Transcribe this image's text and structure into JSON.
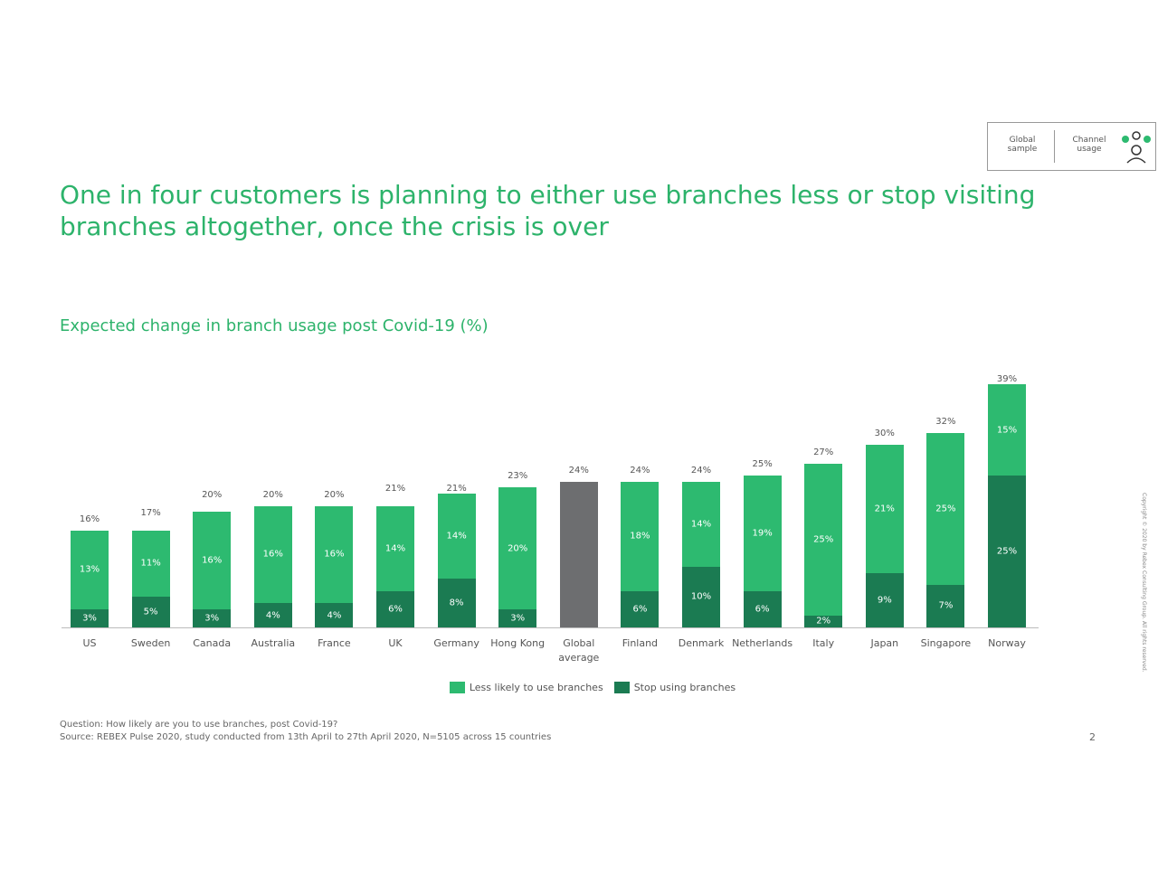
{
  "badge": {
    "left": "Global sample",
    "right": "Channel usage"
  },
  "chart_data": {
    "type": "stacked_bar",
    "title": "One in four customers is planning to either use branches less or stop visiting branches altogether, once the crisis is over",
    "subtitle": "Expected change in branch usage post Covid-19 (%)",
    "categories": [
      "US",
      "Sweden",
      "Canada",
      "Australia",
      "France",
      "UK",
      "Germany",
      "Hong Kong",
      "Global average",
      "Finland",
      "Denmark",
      "Netherlands",
      "Italy",
      "Japan",
      "Singapore",
      "Norway"
    ],
    "series": [
      {
        "name": "Less likely to use branches",
        "color": "#2dba70",
        "values": [
          13,
          11,
          16,
          16,
          16,
          14,
          14,
          20,
          null,
          18,
          14,
          19,
          25,
          21,
          25,
          15
        ],
        "value_labels": [
          "13%",
          "11%",
          "16%",
          "16%",
          "16%",
          "14%",
          "14%",
          "20%",
          null,
          "18%",
          "14%",
          "19%",
          "25%",
          "21%",
          "25%",
          "15%"
        ]
      },
      {
        "name": "Stop using branches",
        "color": "#1b7b52",
        "values": [
          3,
          5,
          3,
          4,
          4,
          6,
          8,
          3,
          null,
          6,
          10,
          6,
          2,
          9,
          7,
          25
        ],
        "value_labels": [
          "3%",
          "5%",
          "3%",
          "4%",
          "4%",
          "6%",
          "8%",
          "3%",
          null,
          "6%",
          "10%",
          "6%",
          "2%",
          "9%",
          "7%",
          "25%"
        ]
      }
    ],
    "totals": {
      "color": "#6d6e70",
      "values": [
        16,
        17,
        20,
        20,
        20,
        21,
        21,
        23,
        24,
        24,
        24,
        25,
        27,
        30,
        32,
        39
      ],
      "value_labels": [
        "16%",
        "17%",
        "20%",
        "20%",
        "20%",
        "21%",
        "21%",
        "23%",
        "24%",
        "24%",
        "24%",
        "25%",
        "27%",
        "30%",
        "32%",
        "39%"
      ]
    }
  },
  "footnotes": [
    "Question: How likely are you to use branches, post Covid-19?",
    "Source: REBEX Pulse 2020, study conducted from 13th April to 27th April 2020, N=5105 across 15 countries"
  ],
  "page_number": "2",
  "copyright": "Copyright © 2020 by Rebex Consulting Group. All rights reserved."
}
